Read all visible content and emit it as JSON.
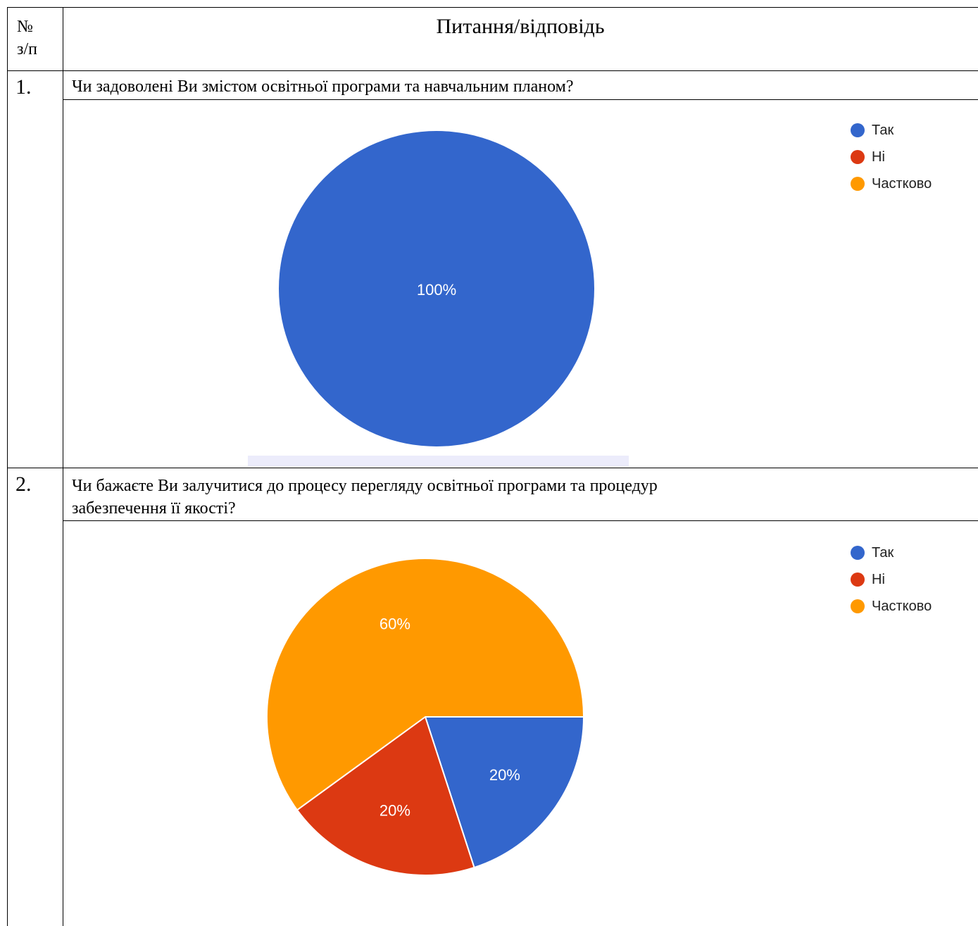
{
  "header": {
    "num_label_line1": "№",
    "num_label_line2": "з/п",
    "title": "Питання/відповідь"
  },
  "questions": [
    {
      "number": "1.",
      "text_line1": "Чи задоволені Ви змістом освітньої програми та навчальним планом?",
      "legend": [
        "Так",
        "Ні",
        "Частково"
      ]
    },
    {
      "number": "2.",
      "text_line1": "Чи бажаєте Ви залучитися до процесу перегляду освітньої програми та процедур",
      "text_line2": "забезпечення її якості?",
      "legend": [
        "Так",
        "Ні",
        "Частково"
      ]
    }
  ],
  "colors": {
    "yes": "#3366cc",
    "no": "#dc3912",
    "partly": "#ff9900"
  },
  "chart_data": [
    {
      "type": "pie",
      "categories": [
        "Так",
        "Ні",
        "Частково"
      ],
      "values": [
        100,
        0,
        0
      ],
      "labels": [
        "100%",
        "",
        ""
      ],
      "legend_position": "top-right"
    },
    {
      "type": "pie",
      "categories": [
        "Так",
        "Ні",
        "Частково"
      ],
      "values": [
        20,
        20,
        60
      ],
      "labels": [
        "20%",
        "20%",
        "60%"
      ],
      "legend_position": "top-right"
    }
  ]
}
